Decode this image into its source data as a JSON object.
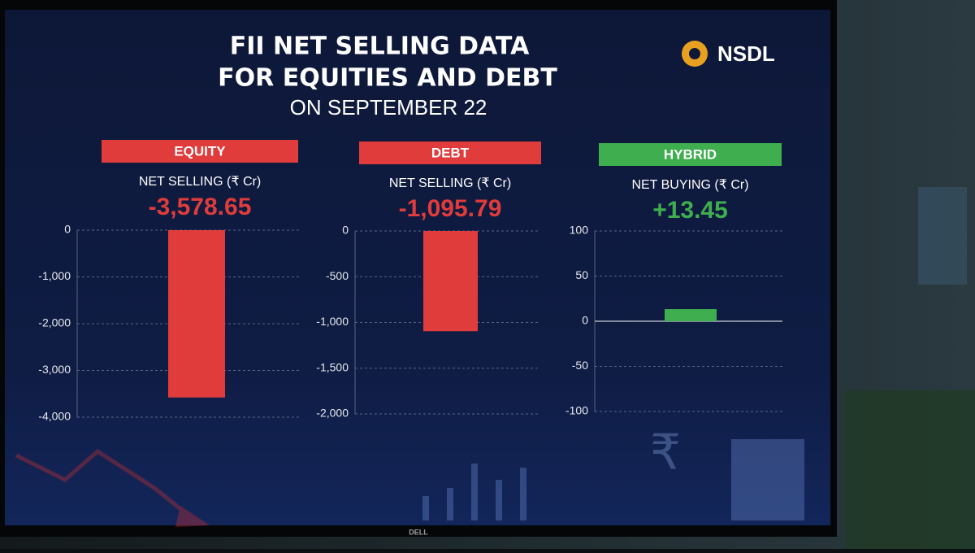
{
  "title": [
    "FII NET SELLING DATA",
    "FOR EQUITIES AND DEBT"
  ],
  "subtitle": "ON SEPTEMBER 22",
  "logo": "NSDL",
  "bezel_brand": "DELL",
  "chart_data": [
    {
      "type": "bar",
      "title": "EQUITY",
      "subtitle": "NET SELLING (₹ Cr)",
      "values": [
        -3578.65
      ],
      "value_labels": [
        "-3,578.65"
      ],
      "color": "#e03c3c",
      "ylim": [
        -4000,
        0
      ],
      "yticks": [
        0,
        {
          "value": -1000,
          "label": "-1,000"
        },
        {
          "value": -2000,
          "label": "-2,000"
        },
        {
          "value": -3000,
          "label": "-3,000"
        },
        {
          "value": -4000,
          "label": "-4,000"
        }
      ],
      "grid": true
    },
    {
      "type": "bar",
      "title": "DEBT",
      "subtitle": "NET SELLING (₹ Cr)",
      "values": [
        -1095.79
      ],
      "value_labels": [
        "-1,095.79"
      ],
      "color": "#e03c3c",
      "ylim": [
        -2000,
        0
      ],
      "yticks": [
        0,
        -500,
        {
          "value": -1000,
          "label": "-1,000"
        },
        {
          "value": -1500,
          "label": "-1,500"
        },
        {
          "value": -2000,
          "label": "-2,000"
        }
      ],
      "grid": true
    },
    {
      "type": "bar",
      "title": "HYBRID",
      "subtitle": "NET BUYING (₹ Cr)",
      "values": [
        13.45
      ],
      "value_labels": [
        "+13.45"
      ],
      "color": "#3fae4f",
      "ylim": [
        -100,
        100
      ],
      "yticks": [
        100,
        50,
        0,
        -50,
        -100
      ],
      "grid": true
    }
  ]
}
